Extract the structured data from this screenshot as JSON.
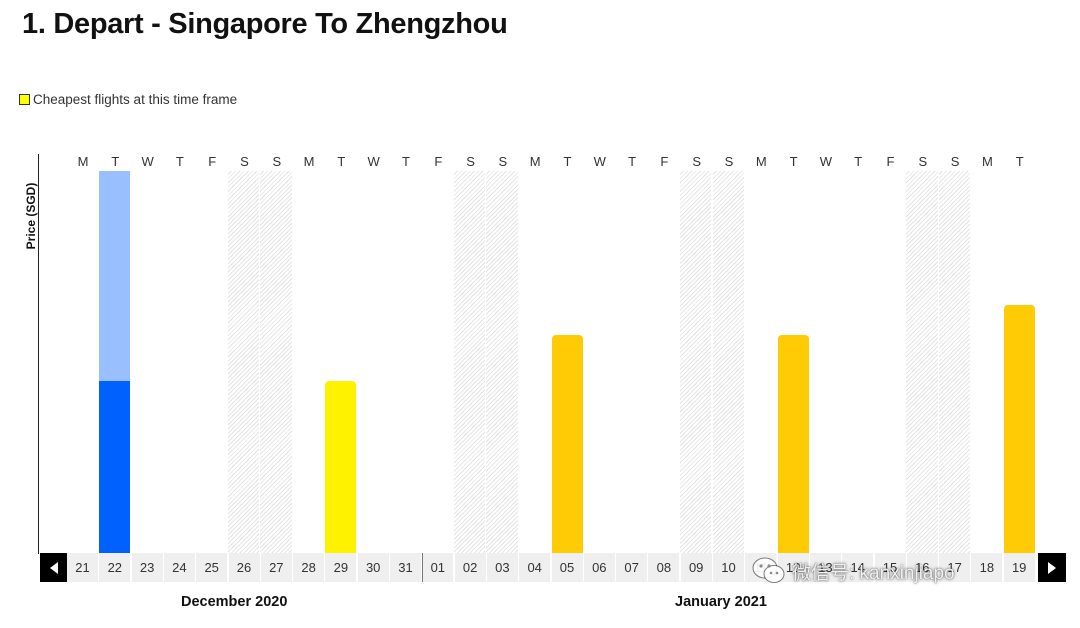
{
  "title": "1. Depart - Singapore To Zhengzhou",
  "legend": {
    "label": "Cheapest flights at this time frame",
    "color": "#ffff00"
  },
  "y_axis_label": "Price (SGD)",
  "days_of_week": [
    "M",
    "T",
    "W",
    "T",
    "F",
    "S",
    "S",
    "M",
    "T",
    "W",
    "T",
    "F",
    "S",
    "S",
    "M",
    "T",
    "W",
    "T",
    "F",
    "S",
    "S",
    "M",
    "T",
    "W",
    "T",
    "F",
    "S",
    "S",
    "M",
    "T"
  ],
  "dates": [
    "21",
    "22",
    "23",
    "24",
    "25",
    "26",
    "27",
    "28",
    "29",
    "30",
    "31",
    "01",
    "02",
    "03",
    "04",
    "05",
    "06",
    "07",
    "08",
    "09",
    "10",
    "11",
    "12",
    "13",
    "14",
    "15",
    "16",
    "17",
    "18",
    "19"
  ],
  "months": [
    "December 2020",
    "January 2021"
  ],
  "nav": {
    "prev_icon": "left-arrow-icon",
    "next_icon": "right-arrow-icon"
  },
  "colors": {
    "selected_bar": "#0061ff",
    "selected_bar_back": "#99bfff",
    "cheapest_bar": "#fff200",
    "other_bar": "#ffcb05",
    "selected_date_cell": "#ffcb05"
  },
  "chart_data": {
    "type": "bar",
    "note_relative_heights": "fraction of plot height",
    "bars": [
      {
        "date": "22",
        "value": 0.45,
        "back_value": 1.0,
        "kind": "selected"
      },
      {
        "date": "29",
        "value": 0.45,
        "kind": "cheapest"
      },
      {
        "date": "05",
        "value": 0.57,
        "kind": "other"
      },
      {
        "date": "12",
        "value": 0.57,
        "kind": "other"
      },
      {
        "date": "19",
        "value": 0.65,
        "kind": "other"
      }
    ],
    "weekend_dates": [
      "26",
      "27",
      "02",
      "03",
      "09",
      "10",
      "16",
      "17"
    ]
  },
  "watermark": {
    "text": "微信号: kanxinjiapo",
    "icon": "wechat-icon"
  }
}
